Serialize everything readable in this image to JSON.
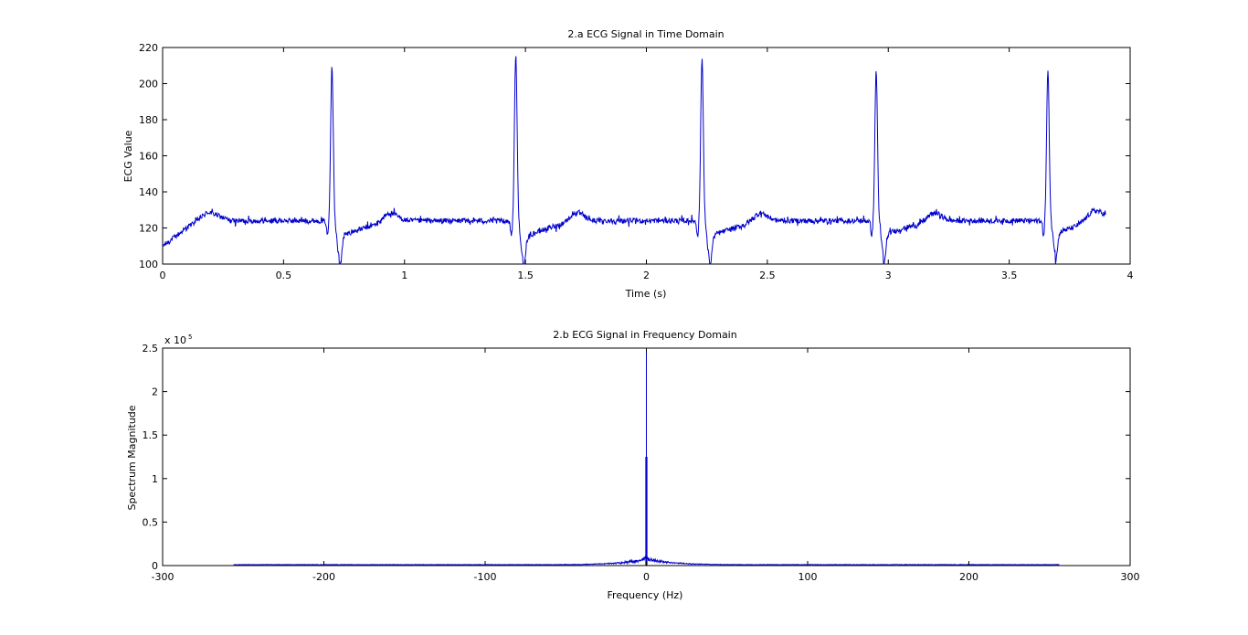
{
  "figure": {
    "background": "#ffffff",
    "line_color": "#0000cc"
  },
  "chart_data": [
    {
      "id": "time",
      "type": "line",
      "title": "2.a ECG Signal in Time Domain",
      "xlabel": "Time (s)",
      "ylabel": "ECG Value",
      "xlim": [
        0,
        4
      ],
      "ylim": [
        100,
        220
      ],
      "xticks": [
        0,
        0.5,
        1,
        1.5,
        2,
        2.5,
        3,
        3.5,
        4
      ],
      "xtick_labels": [
        "0",
        "0.5",
        "1",
        "1.5",
        "2",
        "2.5",
        "3",
        "3.5",
        "4"
      ],
      "yticks": [
        100,
        120,
        140,
        160,
        180,
        200,
        220
      ],
      "ytick_labels": [
        "100",
        "120",
        "140",
        "160",
        "180",
        "200",
        "220"
      ],
      "grid": false,
      "sampling_rate_hz": 512,
      "x_end": 3.9,
      "baseline": 124,
      "beats": [
        {
          "r_time": 0.7,
          "r_peak": 210,
          "s_min": 104,
          "t_time": 0.94
        },
        {
          "r_time": 1.46,
          "r_peak": 216,
          "s_min": 103,
          "t_time": 1.71
        },
        {
          "r_time": 2.23,
          "r_peak": 214,
          "s_min": 104,
          "t_time": 2.47
        },
        {
          "r_time": 2.95,
          "r_peak": 207,
          "s_min": 106,
          "t_time": 3.19
        },
        {
          "r_time": 3.66,
          "r_peak": 207,
          "s_min": 108,
          "t_time": 3.85
        }
      ],
      "start_value": 110,
      "end_value": 129,
      "series": [
        {
          "color": "#0000cc"
        }
      ]
    },
    {
      "id": "freq",
      "type": "line",
      "title": "2.b ECG Signal in Frequency Domain",
      "xlabel": "Frequency (Hz)",
      "ylabel": "Spectrum Magnitude",
      "xlim": [
        -300,
        300
      ],
      "ylim": [
        0,
        250000
      ],
      "xticks": [
        -300,
        -200,
        -100,
        0,
        100,
        200,
        300
      ],
      "xtick_labels": [
        "-300",
        "-200",
        "-100",
        "0",
        "100",
        "200",
        "300"
      ],
      "yticks": [
        0,
        50000,
        100000,
        150000,
        200000,
        250000
      ],
      "ytick_labels": [
        "0",
        "0.5",
        "1",
        "1.5",
        "2",
        "2.5"
      ],
      "y_multiplier_base": "x 10",
      "y_multiplier_exp": "5",
      "grid": false,
      "x_range": [
        -256,
        256
      ],
      "dc_value": 250000,
      "secondary_peaks": [
        {
          "x": -0.25,
          "y": 125000
        },
        {
          "x": 0.25,
          "y": 125000
        }
      ],
      "low_freq_envelope_peak": 7000,
      "series": [
        {
          "color": "#0000cc"
        }
      ]
    }
  ]
}
